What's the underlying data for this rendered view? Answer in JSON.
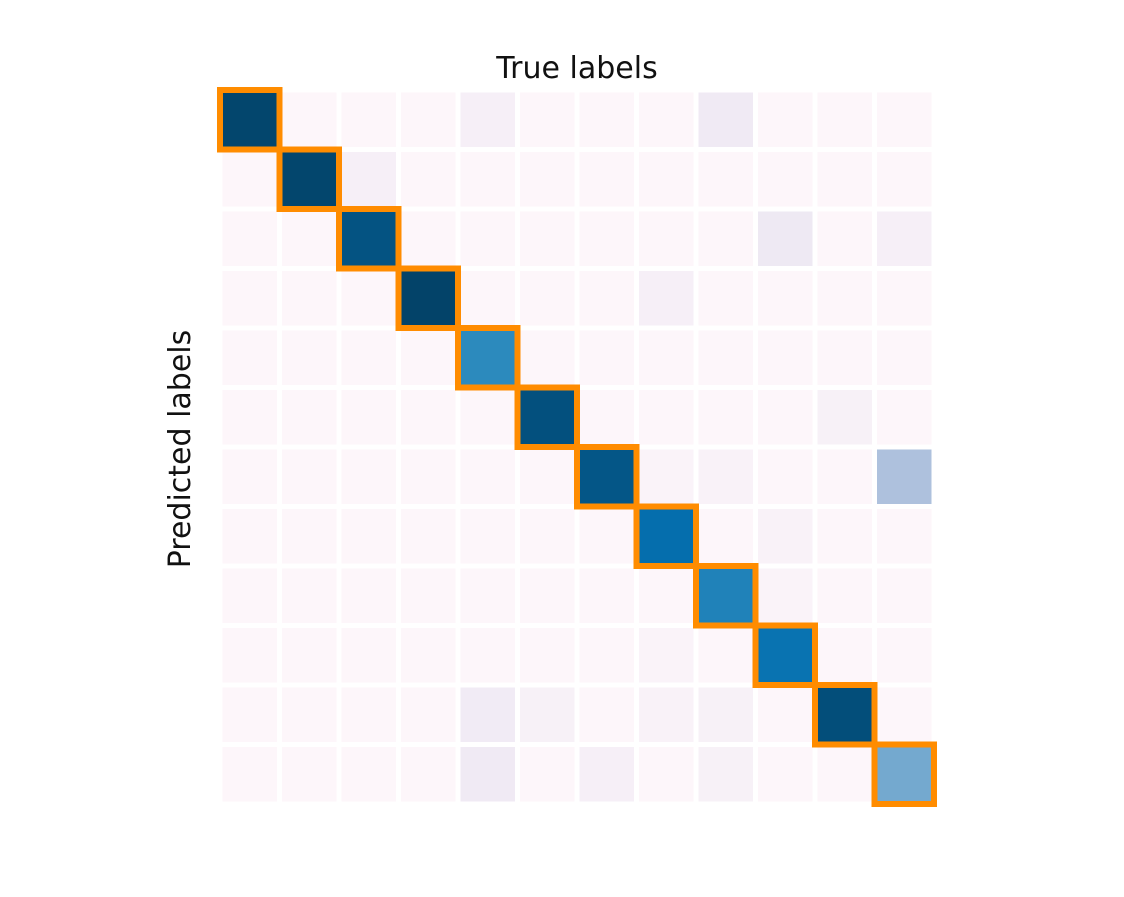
{
  "chart_data": {
    "type": "heatmap",
    "title": "",
    "xlabel": "True labels",
    "ylabel": "Predicted labels",
    "rows": 12,
    "cols": 12,
    "value_range": [
      0,
      1
    ],
    "colormap": "PuBu",
    "highlight_color": "#ff8c00",
    "highlight": "diagonal",
    "grid": false,
    "tick_labels_shown": false,
    "values": [
      [
        0.95,
        0.01,
        0.01,
        0.01,
        0.06,
        0.01,
        0.01,
        0.01,
        0.1,
        0.01,
        0.01,
        0.01
      ],
      [
        0.01,
        0.95,
        0.06,
        0.01,
        0.01,
        0.01,
        0.01,
        0.01,
        0.01,
        0.01,
        0.01,
        0.01
      ],
      [
        0.01,
        0.01,
        0.9,
        0.01,
        0.01,
        0.01,
        0.01,
        0.01,
        0.01,
        0.11,
        0.01,
        0.06
      ],
      [
        0.01,
        0.01,
        0.01,
        0.96,
        0.01,
        0.01,
        0.01,
        0.06,
        0.01,
        0.01,
        0.01,
        0.01
      ],
      [
        0.01,
        0.01,
        0.01,
        0.01,
        0.65,
        0.01,
        0.01,
        0.01,
        0.01,
        0.01,
        0.01,
        0.01
      ],
      [
        0.01,
        0.01,
        0.01,
        0.01,
        0.01,
        0.91,
        0.01,
        0.01,
        0.01,
        0.01,
        0.05,
        0.01
      ],
      [
        0.01,
        0.01,
        0.01,
        0.01,
        0.01,
        0.01,
        0.89,
        0.03,
        0.04,
        0.01,
        0.01,
        0.35
      ],
      [
        0.01,
        0.01,
        0.01,
        0.01,
        0.01,
        0.01,
        0.01,
        0.76,
        0.01,
        0.04,
        0.01,
        0.01
      ],
      [
        0.01,
        0.01,
        0.01,
        0.01,
        0.01,
        0.01,
        0.01,
        0.01,
        0.68,
        0.03,
        0.01,
        0.01
      ],
      [
        0.01,
        0.01,
        0.01,
        0.01,
        0.01,
        0.01,
        0.01,
        0.03,
        0.01,
        0.74,
        0.01,
        0.01
      ],
      [
        0.01,
        0.01,
        0.01,
        0.01,
        0.09,
        0.05,
        0.01,
        0.04,
        0.05,
        0.01,
        0.92,
        0.01
      ],
      [
        0.01,
        0.01,
        0.01,
        0.01,
        0.1,
        0.01,
        0.06,
        0.01,
        0.05,
        0.01,
        0.01,
        0.5
      ]
    ]
  }
}
